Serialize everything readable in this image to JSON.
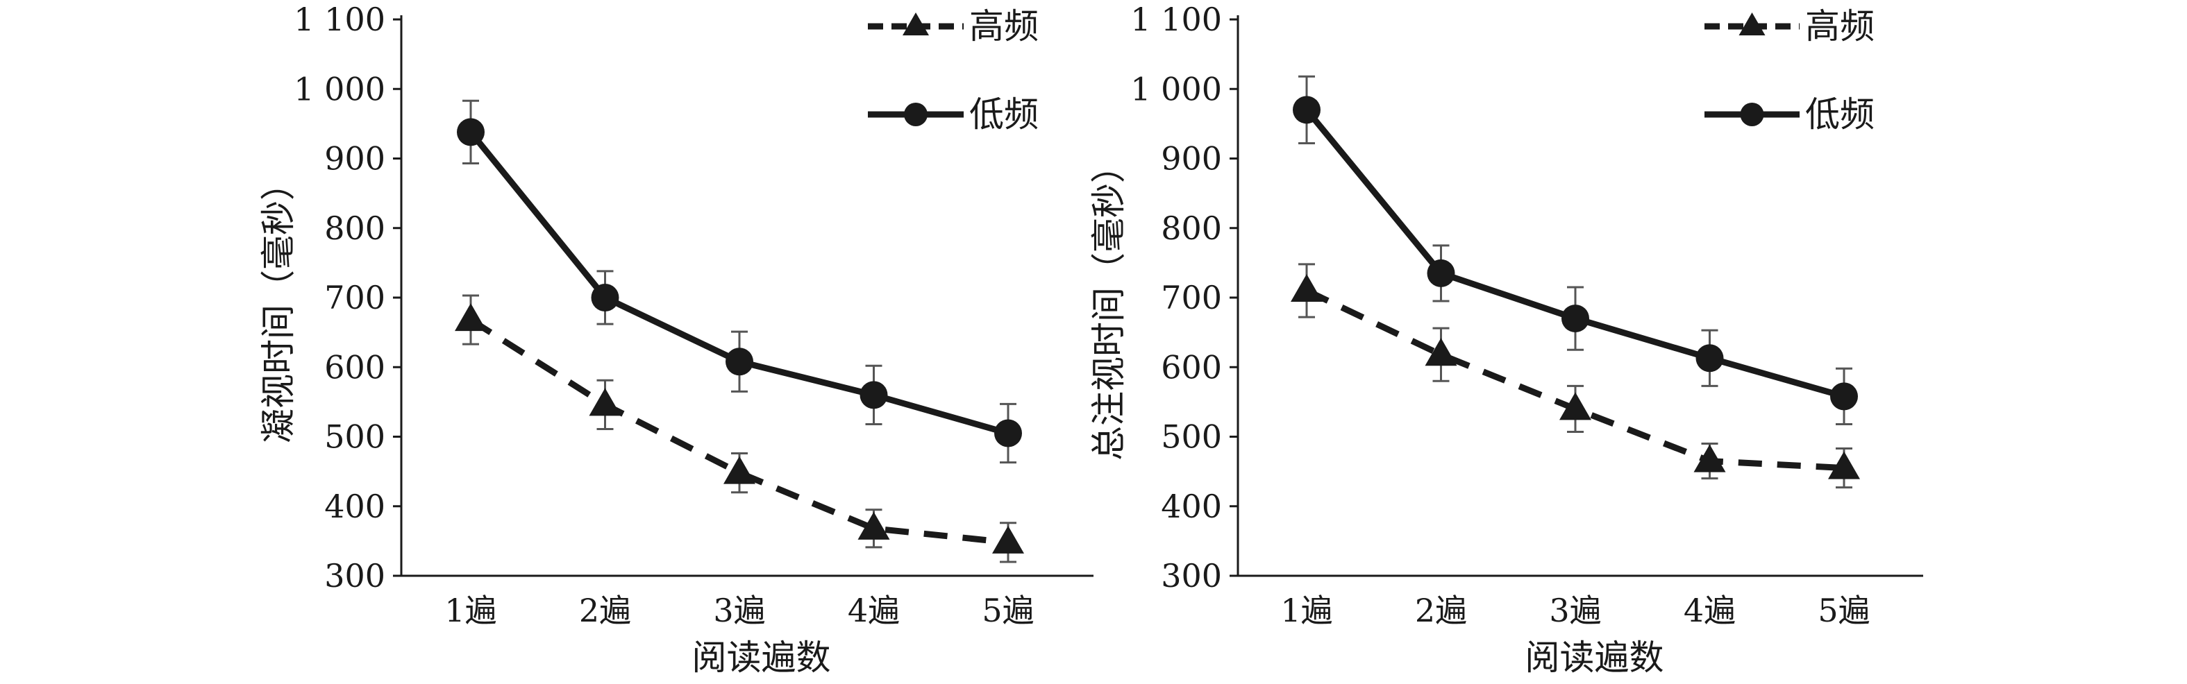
{
  "chart_data": [
    {
      "type": "line",
      "xlabel": "阅读遍数",
      "ylabel": "凝视时间（毫秒）",
      "categories": [
        "1遍",
        "2遍",
        "3遍",
        "4遍",
        "5遍"
      ],
      "ylim": [
        300,
        1100
      ],
      "yticks": [
        300,
        400,
        500,
        600,
        700,
        800,
        900,
        1000,
        1100
      ],
      "ytick_labels": [
        "300",
        "400",
        "500",
        "600",
        "700",
        "800",
        "900",
        "1 000",
        "1 100"
      ],
      "grid": false,
      "legend_position": "top-right",
      "series": [
        {
          "name": "高频",
          "marker": "triangle",
          "line_style": "dashed",
          "values": [
            668,
            546,
            448,
            368,
            348
          ],
          "error": [
            35,
            35,
            28,
            27,
            28
          ]
        },
        {
          "name": "低频",
          "marker": "circle",
          "line_style": "solid",
          "values": [
            938,
            700,
            608,
            560,
            505
          ],
          "error": [
            45,
            38,
            43,
            42,
            42
          ]
        }
      ]
    },
    {
      "type": "line",
      "xlabel": "阅读遍数",
      "ylabel": "总注视时间（毫秒）",
      "categories": [
        "1遍",
        "2遍",
        "3遍",
        "4遍",
        "5遍"
      ],
      "ylim": [
        300,
        1100
      ],
      "yticks": [
        300,
        400,
        500,
        600,
        700,
        800,
        900,
        1000,
        1100
      ],
      "ytick_labels": [
        "300",
        "400",
        "500",
        "600",
        "700",
        "800",
        "900",
        "1 000",
        "1 100"
      ],
      "grid": false,
      "legend_position": "top-right",
      "series": [
        {
          "name": "高频",
          "marker": "triangle",
          "line_style": "dashed",
          "values": [
            710,
            618,
            540,
            465,
            455
          ],
          "error": [
            38,
            38,
            33,
            25,
            28
          ]
        },
        {
          "name": "低频",
          "marker": "circle",
          "line_style": "solid",
          "values": [
            970,
            735,
            670,
            613,
            558
          ],
          "error": [
            48,
            40,
            45,
            40,
            40
          ]
        }
      ]
    }
  ],
  "colors": {
    "ink": "#1a1a1a"
  }
}
